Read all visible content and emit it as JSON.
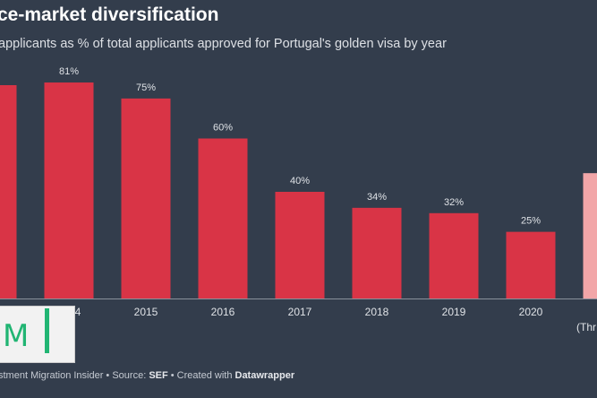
{
  "title": "ce-market diversification",
  "subtitle": "applicants as % of total applicants approved for Portugal's golden visa by year",
  "footer": {
    "prefix": "stment Migration Insider • Source: ",
    "source": "SEF",
    "mid": " • Created with ",
    "tool": "Datawrapper"
  },
  "colors": {
    "background": "#333d4c",
    "bar": "#d93446",
    "bar_highlight": "#f2a6a8",
    "logo_green": "#21b573"
  },
  "chart_data": {
    "type": "bar",
    "categories": [
      "",
      "2014",
      "2015",
      "2016",
      "2017",
      "2018",
      "2019",
      "2020",
      "(Thr"
    ],
    "values": [
      80,
      81,
      75,
      60,
      40,
      34,
      32,
      25,
      47
    ],
    "labels": [
      "%",
      "81%",
      "75%",
      "60%",
      "40%",
      "34%",
      "32%",
      "25%",
      ""
    ],
    "ylim": [
      0,
      100
    ],
    "grid": false
  }
}
